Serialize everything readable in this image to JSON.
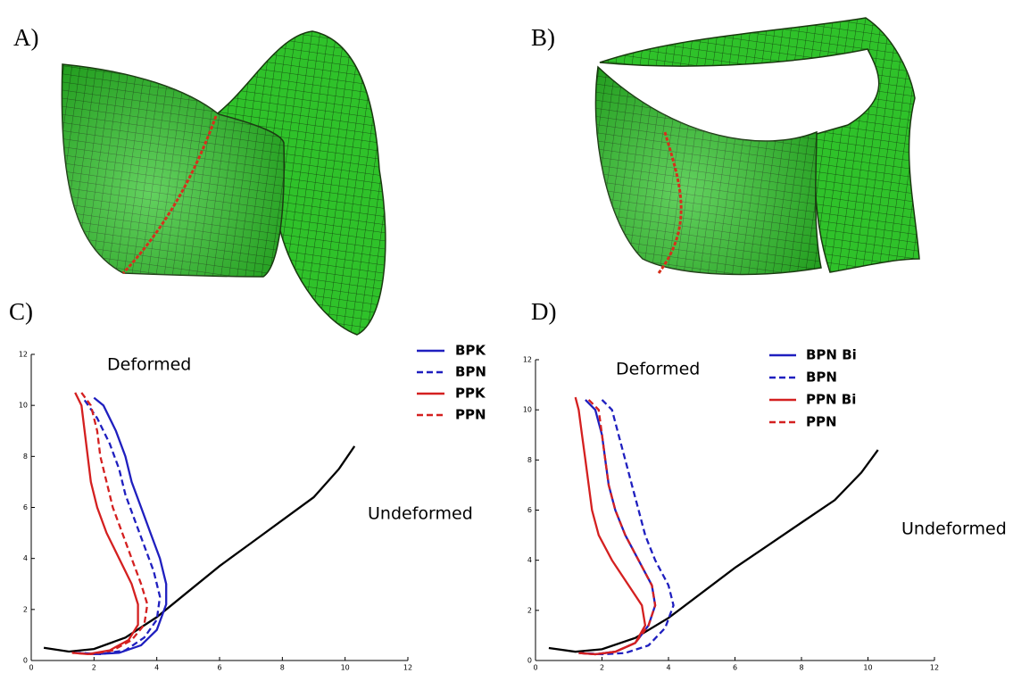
{
  "panels": [
    "A)",
    "B)",
    "C)",
    "D)"
  ],
  "chart_data": [
    {
      "type": "line",
      "xlim": [
        0,
        12
      ],
      "ylim": [
        0,
        12
      ],
      "xticks": [
        0,
        2,
        4,
        6,
        8,
        10,
        12
      ],
      "yticks": [
        0,
        2,
        4,
        6,
        8,
        10,
        12
      ],
      "annotations": [
        "Deformed",
        "Undeformed"
      ],
      "series": [
        {
          "color": "#000000",
          "linestyle": "solid",
          "x": [
            0.4,
            1.2,
            2,
            3,
            4,
            5,
            6,
            7,
            8,
            9,
            9.8,
            10.3
          ],
          "values": [
            0.5,
            0.35,
            0.45,
            0.9,
            1.7,
            2.7,
            3.7,
            4.6,
            5.5,
            6.4,
            7.5,
            8.4
          ]
        },
        {
          "name": "BPK",
          "color": "#1f1fbf",
          "linestyle": "solid",
          "x": [
            2,
            2.3,
            2.7,
            3.0,
            3.2,
            3.5,
            3.8,
            4.1,
            4.3,
            4.3,
            4.0,
            3.5,
            2.8,
            2,
            1.4
          ],
          "values": [
            10.3,
            10,
            9,
            8,
            7,
            6,
            5,
            4,
            3,
            2.2,
            1.2,
            0.6,
            0.3,
            0.25,
            0.3
          ]
        },
        {
          "name": "BPN",
          "color": "#1f1fbf",
          "linestyle": "dashed",
          "x": [
            1.7,
            2.1,
            2.5,
            2.8,
            3.0,
            3.3,
            3.6,
            3.9,
            4.1,
            4.0,
            3.6,
            3,
            2.2,
            1.5
          ],
          "values": [
            10.2,
            9.5,
            8.5,
            7.5,
            6.5,
            5.5,
            4.5,
            3.5,
            2.5,
            1.6,
            0.9,
            0.4,
            0.25,
            0.3
          ]
        },
        {
          "name": "PPK",
          "color": "#d42020",
          "linestyle": "solid",
          "x": [
            1.4,
            1.6,
            1.7,
            1.8,
            1.9,
            2.1,
            2.4,
            2.8,
            3.2,
            3.4,
            3.4,
            3.1,
            2.5,
            1.8,
            1.3
          ],
          "values": [
            10.5,
            10,
            9,
            8,
            7,
            6,
            5,
            4,
            3,
            2.2,
            1.4,
            0.8,
            0.4,
            0.25,
            0.3
          ]
        },
        {
          "name": "PPN",
          "color": "#d42020",
          "linestyle": "dashed",
          "x": [
            1.6,
            1.9,
            2.1,
            2.2,
            2.4,
            2.6,
            2.9,
            3.2,
            3.5,
            3.7,
            3.6,
            3.2,
            2.6,
            1.9,
            1.3
          ],
          "values": [
            10.5,
            10,
            9,
            8,
            7,
            6,
            5,
            4,
            3,
            2.2,
            1.4,
            0.8,
            0.4,
            0.25,
            0.3
          ]
        }
      ]
    },
    {
      "type": "line",
      "xlim": [
        0,
        12
      ],
      "ylim": [
        0,
        12
      ],
      "xticks": [
        0,
        2,
        4,
        6,
        8,
        10,
        12
      ],
      "yticks": [
        0,
        2,
        4,
        6,
        8,
        10,
        12
      ],
      "annotations": [
        "Deformed",
        "Undeformed"
      ],
      "series": [
        {
          "color": "#000000",
          "linestyle": "solid",
          "x": [
            0.4,
            1.2,
            2,
            3,
            4,
            5,
            6,
            7,
            8,
            9,
            9.8,
            10.3
          ],
          "values": [
            0.5,
            0.35,
            0.45,
            0.9,
            1.7,
            2.7,
            3.7,
            4.6,
            5.5,
            6.4,
            7.5,
            8.4
          ]
        },
        {
          "name": "BPN Bi",
          "color": "#1f1fbf",
          "linestyle": "solid",
          "x": [
            1.5,
            1.8,
            2,
            2.1,
            2.2,
            2.4,
            2.7,
            3.1,
            3.5,
            3.6,
            3.4,
            3,
            2.4,
            1.8,
            1.3
          ],
          "values": [
            10.4,
            10,
            9,
            8,
            7,
            6,
            5,
            4,
            3,
            2.2,
            1.4,
            0.7,
            0.35,
            0.25,
            0.3
          ]
        },
        {
          "name": "BPN",
          "color": "#1f1fbf",
          "linestyle": "dashed",
          "x": [
            2,
            2.3,
            2.5,
            2.7,
            2.9,
            3.1,
            3.3,
            3.6,
            4,
            4.15,
            3.9,
            3.4,
            2.7,
            2,
            1.4
          ],
          "values": [
            10.4,
            10,
            9,
            8,
            7,
            6,
            5,
            4,
            3,
            2.2,
            1.3,
            0.6,
            0.3,
            0.25,
            0.3
          ]
        },
        {
          "name": "PPN Bi",
          "color": "#d42020",
          "linestyle": "solid",
          "x": [
            1.2,
            1.3,
            1.4,
            1.5,
            1.6,
            1.7,
            1.9,
            2.3,
            2.8,
            3.2,
            3.3,
            3,
            2.4,
            1.8,
            1.3
          ],
          "values": [
            10.5,
            10,
            9,
            8,
            7,
            6,
            5,
            4,
            3,
            2.2,
            1.4,
            0.7,
            0.35,
            0.25,
            0.3
          ]
        },
        {
          "name": "PPN",
          "color": "#d42020",
          "linestyle": "dashed",
          "x": [
            1.6,
            1.9,
            2,
            2.1,
            2.2,
            2.4,
            2.7,
            3.1,
            3.5,
            3.6,
            3.4,
            3,
            2.4,
            1.8,
            1.3
          ],
          "values": [
            10.4,
            10,
            9,
            8,
            7,
            6,
            5,
            4,
            3,
            2.2,
            1.4,
            0.7,
            0.35,
            0.25,
            0.3
          ]
        }
      ]
    }
  ]
}
